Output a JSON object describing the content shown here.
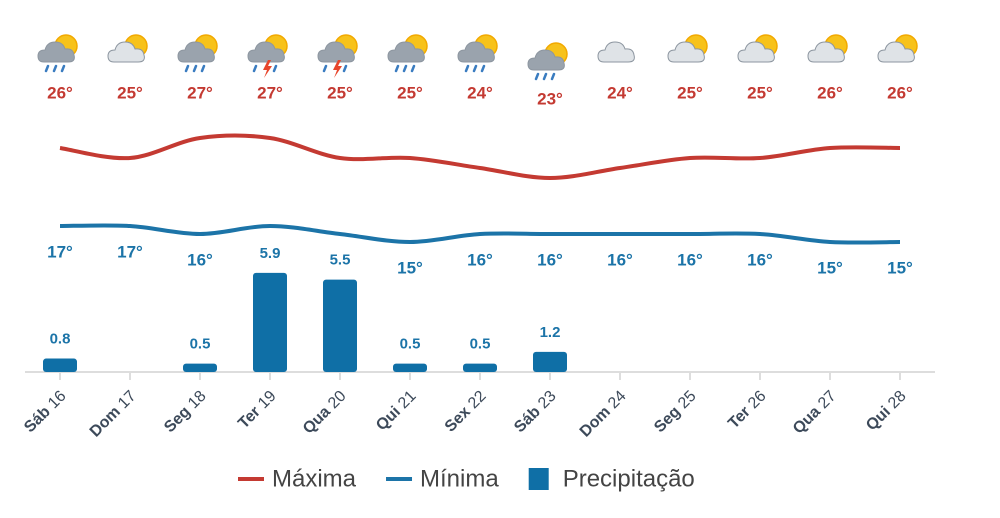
{
  "chart_data": {
    "type": "line",
    "categories": [
      "Sáb",
      "Dom",
      "Seg",
      "Ter",
      "Qua",
      "Qui",
      "Sex",
      "Sáb",
      "Dom",
      "Seg",
      "Ter",
      "Qua",
      "Qui"
    ],
    "days": [
      "16",
      "17",
      "18",
      "19",
      "20",
      "21",
      "22",
      "23",
      "24",
      "25",
      "26",
      "27",
      "28"
    ],
    "series": [
      {
        "name": "Máxima",
        "color": "#c43a32",
        "values": [
          26,
          25,
          27,
          27,
          25,
          25,
          24,
          23,
          24,
          25,
          25,
          26,
          26
        ],
        "value_labels": [
          "26°",
          "25°",
          "27°",
          "27°",
          "25°",
          "25°",
          "24°",
          "23°",
          "24°",
          "25°",
          "25°",
          "26°",
          "26°"
        ]
      },
      {
        "name": "Mínima",
        "color": "#1c74a8",
        "values": [
          17,
          17,
          16,
          17,
          16,
          15,
          16,
          16,
          16,
          16,
          16,
          15,
          15
        ],
        "value_labels": [
          "17°",
          "17°",
          "16°",
          null,
          null,
          "15°",
          "16°",
          "16°",
          "16°",
          "16°",
          "16°",
          "15°",
          "15°"
        ]
      },
      {
        "name": "Precipitação",
        "type": "bar",
        "color": "#0f6fa6",
        "values": [
          0.8,
          null,
          0.5,
          5.9,
          5.5,
          0.5,
          0.5,
          1.2,
          null,
          null,
          null,
          null,
          null
        ]
      }
    ]
  }
}
